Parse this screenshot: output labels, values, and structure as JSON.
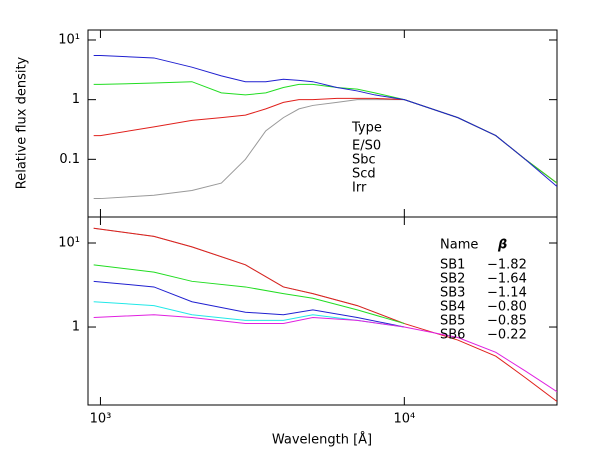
{
  "chart_data": [
    {
      "type": "line",
      "ylabel": "Relative flux density",
      "log_x": true,
      "log_y": true,
      "legend_title": "Type",
      "x": [
        950,
        1000,
        1500,
        2000,
        2500,
        3000,
        3500,
        4000,
        4500,
        5000,
        6000,
        7000,
        8000,
        10000,
        15000,
        20000,
        25000,
        31800
      ],
      "series": [
        {
          "name": "E/S0",
          "color": "#999999",
          "values": [
            0.022,
            0.022,
            0.025,
            0.03,
            0.04,
            0.1,
            0.3,
            0.5,
            0.7,
            0.8,
            0.9,
            1.0,
            1.0,
            1.0,
            0.5,
            0.25,
            0.1,
            0.04
          ]
        },
        {
          "name": "Sbc",
          "color": "#e0201c",
          "values": [
            0.25,
            0.25,
            0.35,
            0.45,
            0.5,
            0.55,
            0.7,
            0.9,
            1.0,
            1.0,
            1.05,
            1.05,
            1.05,
            1.0,
            0.5,
            0.25,
            0.1,
            0.04
          ]
        },
        {
          "name": "Scd",
          "color": "#22dd22",
          "values": [
            1.8,
            1.8,
            1.9,
            2.0,
            1.3,
            1.2,
            1.3,
            1.6,
            1.8,
            1.8,
            1.6,
            1.5,
            1.3,
            1.0,
            0.5,
            0.25,
            0.1,
            0.04
          ]
        },
        {
          "name": "Irr",
          "color": "#2020d0",
          "values": [
            5.5,
            5.5,
            5.0,
            3.5,
            2.5,
            2.0,
            2.0,
            2.2,
            2.1,
            2.0,
            1.6,
            1.4,
            1.2,
            1.0,
            0.5,
            0.25,
            0.1,
            0.035
          ]
        }
      ],
      "xlim": [
        910,
        31800
      ],
      "ylim": [
        0.0108,
        14.7
      ],
      "yticks": [
        {
          "value": 10,
          "label": "10¹"
        },
        1,
        0.1
      ]
    },
    {
      "type": "line",
      "xlabel": "Wavelength [Å]",
      "log_x": true,
      "log_y": true,
      "legend_title": "Name",
      "beta_title": "β",
      "x": [
        950,
        1500,
        2000,
        3000,
        4000,
        5000,
        7000,
        10000,
        15000,
        20000,
        25000,
        31800
      ],
      "series": [
        {
          "name": "SB1",
          "color": "#999999",
          "beta": "−1.82",
          "values": [
            15,
            12,
            9,
            5.5,
            3,
            2.5,
            1.8,
            1.1,
            null,
            null,
            null,
            null
          ]
        },
        {
          "name": "SB2",
          "color": "#e0201c",
          "beta": "−1.64",
          "values": [
            15,
            12,
            9,
            5.5,
            3,
            2.5,
            1.8,
            1.1,
            0.7,
            0.45,
            0.25,
            0.13
          ]
        },
        {
          "name": "SB3",
          "color": "#22dd22",
          "beta": "−1.14",
          "values": [
            5.5,
            4.5,
            3.5,
            3,
            2.5,
            2.2,
            1.6,
            1.1,
            null,
            null,
            null,
            null
          ]
        },
        {
          "name": "SB4",
          "color": "#2020d0",
          "beta": "−0.80",
          "values": [
            3.5,
            3,
            2.0,
            1.5,
            1.4,
            1.6,
            1.3,
            1.0,
            null,
            null,
            null,
            null
          ]
        },
        {
          "name": "SB5",
          "color": "#22e8e8",
          "beta": "−0.85",
          "values": [
            2.0,
            1.8,
            1.4,
            1.2,
            1.2,
            1.4,
            1.2,
            1.0,
            null,
            null,
            null,
            null
          ]
        },
        {
          "name": "SB6",
          "color": "#e020e0",
          "beta": "−0.22",
          "values": [
            1.3,
            1.4,
            1.3,
            1.1,
            1.1,
            1.3,
            1.2,
            1.0,
            0.75,
            0.5,
            0.3,
            0.17
          ]
        }
      ],
      "xlim": [
        910,
        31800
      ],
      "ylim": [
        0.118,
        20.4
      ],
      "xticks": [
        {
          "value": 1000,
          "label": "10³"
        },
        {
          "value": 10000,
          "label": "10⁴"
        }
      ],
      "yticks": [
        {
          "value": 10,
          "label": "10¹"
        },
        1
      ]
    }
  ]
}
